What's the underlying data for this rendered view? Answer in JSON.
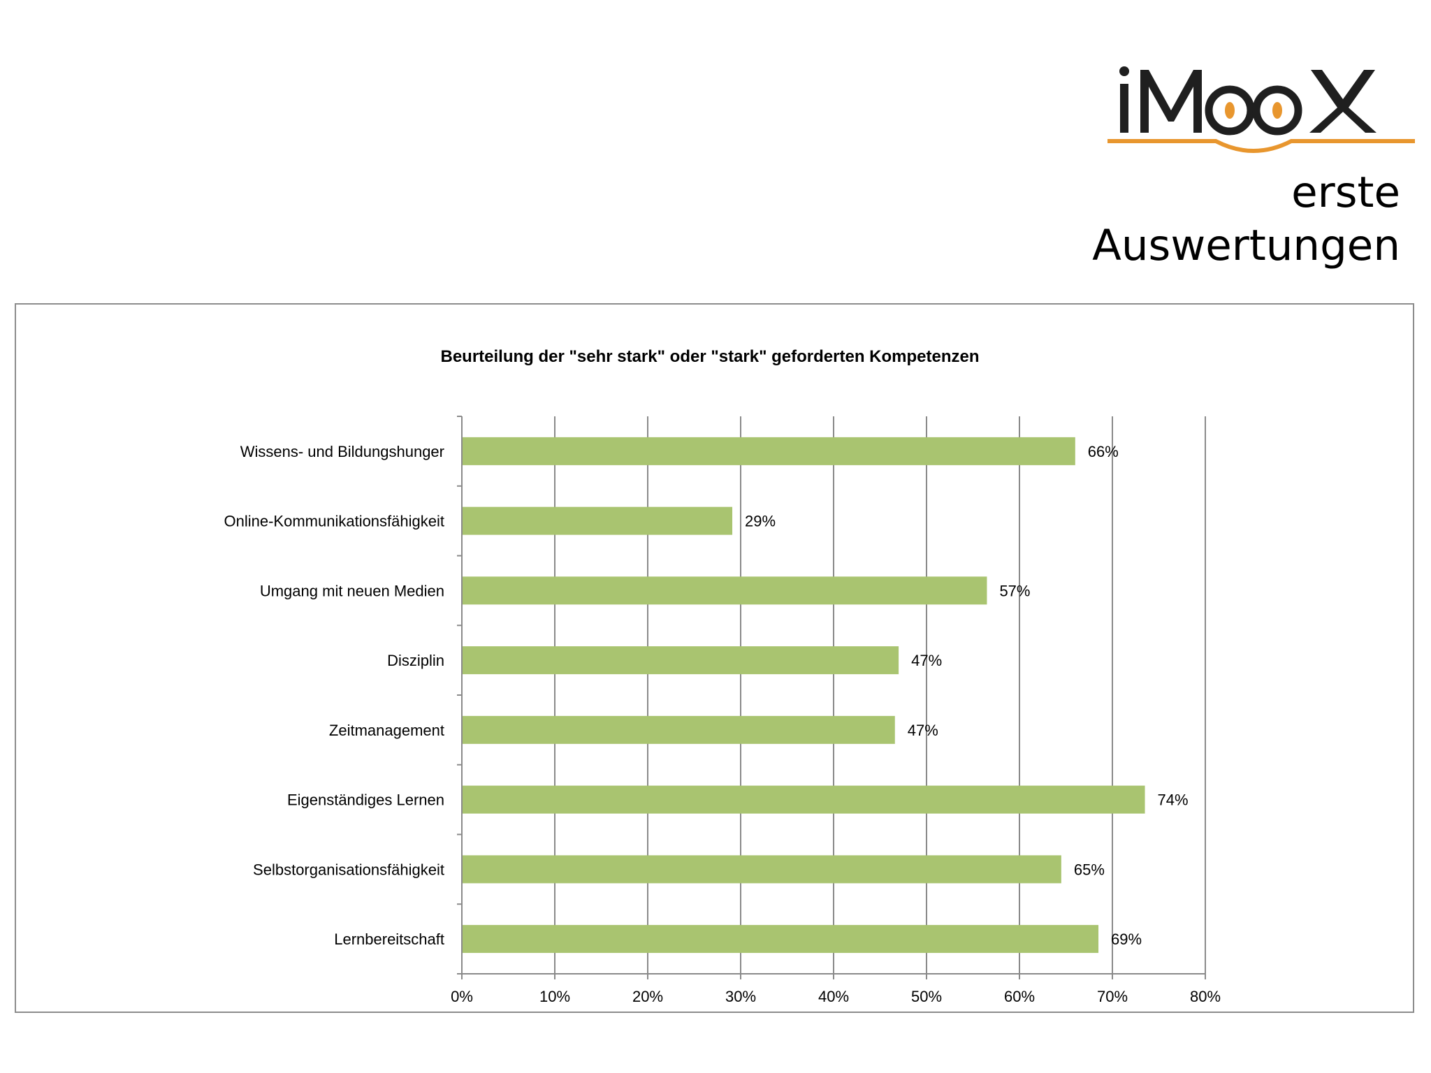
{
  "slide": {
    "logo_text": "iMooX",
    "subtitle_line1": "erste",
    "subtitle_line2": "Auswertungen"
  },
  "colors": {
    "bar": "#a9c470",
    "logo_orange": "#e8962e",
    "logo_dark": "#1f1f1f"
  },
  "chart_data": {
    "type": "bar",
    "orientation": "horizontal",
    "title": "Beurteilung der \"sehr stark\" oder \"stark\" geforderten Kompetenzen",
    "categories": [
      "Wissens- und Bildungshunger",
      "Online-Kommunikationsfähigkeit",
      "Umgang mit neuen Medien",
      "Disziplin",
      "Zeitmanagement",
      "Eigenständiges Lernen",
      "Selbstorganisationsfähigkeit",
      "Lernbereitschaft"
    ],
    "values": [
      66.0,
      29.1,
      56.5,
      47.0,
      46.6,
      73.5,
      64.5,
      68.5
    ],
    "value_labels": [
      "66%",
      "29%",
      "57%",
      "47%",
      "47%",
      "74%",
      "65%",
      "69%"
    ],
    "xlim": [
      0,
      80
    ],
    "xticks": [
      0,
      10,
      20,
      30,
      40,
      50,
      60,
      70,
      80
    ],
    "xtick_labels": [
      "0%",
      "10%",
      "20%",
      "30%",
      "40%",
      "50%",
      "60%",
      "70%",
      "80%"
    ],
    "xlabel": "",
    "ylabel": "",
    "grid": true,
    "legend": "none"
  }
}
